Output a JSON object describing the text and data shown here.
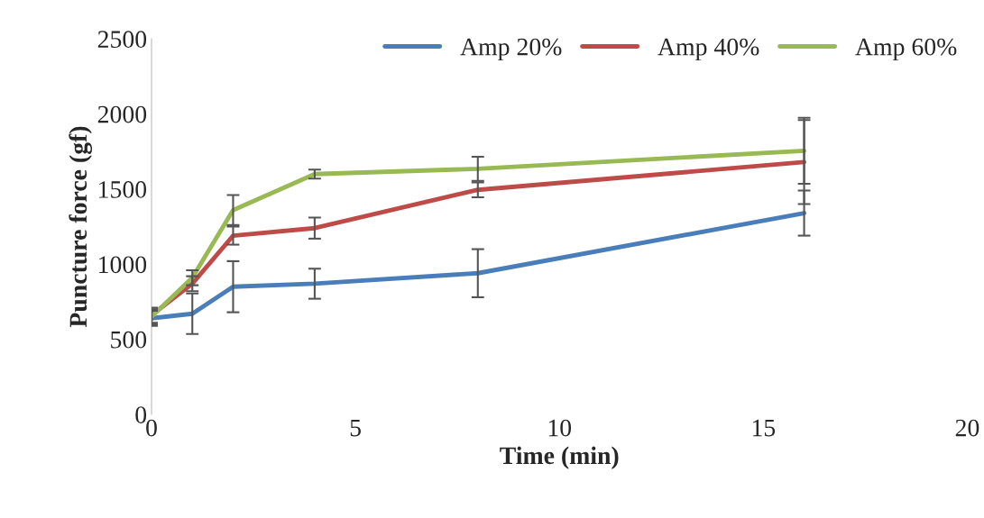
{
  "chart_data": {
    "type": "line",
    "xlabel": "Time (min)",
    "ylabel": "Puncture force (gf)",
    "x": [
      0,
      1,
      2,
      4,
      8,
      16
    ],
    "series": [
      {
        "name": "Amp 20%",
        "color": "#4a7ebb",
        "values": [
          640,
          670,
          850,
          870,
          940,
          1340
        ],
        "errors": [
          50,
          135,
          170,
          100,
          160,
          150
        ]
      },
      {
        "name": "Amp 40%",
        "color": "#be4b48",
        "values": [
          660,
          870,
          1190,
          1240,
          1495,
          1680
        ],
        "errors": [
          50,
          50,
          60,
          70,
          50,
          280
        ]
      },
      {
        "name": "Amp 60%",
        "color": "#98b954",
        "values": [
          650,
          910,
          1360,
          1600,
          1635,
          1755
        ],
        "errors": [
          50,
          50,
          100,
          30,
          80,
          220
        ]
      }
    ],
    "xlim": [
      0,
      20
    ],
    "xticks": [
      0,
      5,
      10,
      15,
      20
    ],
    "ylim": [
      0,
      2500
    ],
    "yticks": [
      0,
      500,
      1000,
      1500,
      2000,
      2500
    ],
    "grid": false,
    "legend": "top right",
    "marker": "none",
    "line_style": "solid"
  }
}
